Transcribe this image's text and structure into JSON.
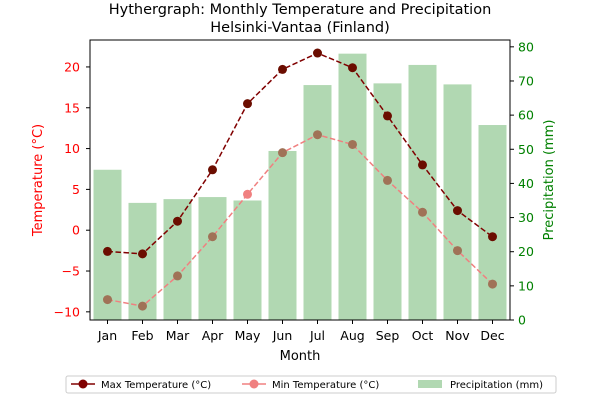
{
  "chart_data": {
    "type": "bar+line",
    "title": "Hythergraph: Monthly Temperature and Precipitation",
    "subtitle": "Helsinki-Vantaa (Finland)",
    "xlabel": "Month",
    "ylabel_left": "Temperature (°C)",
    "ylabel_right": "Precipitation (mm)",
    "categories": [
      "Jan",
      "Feb",
      "Mar",
      "Apr",
      "May",
      "Jun",
      "Jul",
      "Aug",
      "Sep",
      "Oct",
      "Nov",
      "Dec"
    ],
    "ylim_left": [
      -11,
      23.3
    ],
    "ylim_right": [
      0,
      82
    ],
    "yticks_left": [
      -10,
      -5,
      0,
      5,
      10,
      15,
      20
    ],
    "yticks_right": [
      0,
      10,
      20,
      30,
      40,
      50,
      60,
      70,
      80
    ],
    "series": [
      {
        "name": "Max Temperature (°C)",
        "kind": "line",
        "axis": "left",
        "color": "#800000",
        "linestyle": "dashed",
        "values": [
          -2.6,
          -2.9,
          1.1,
          7.4,
          15.5,
          19.7,
          21.7,
          19.9,
          14.0,
          8.0,
          2.4,
          -0.8
        ]
      },
      {
        "name": "Min Temperature (°C)",
        "kind": "line",
        "axis": "left",
        "color": "#f08080",
        "linestyle": "dashed",
        "values": [
          -8.5,
          -9.3,
          -5.6,
          -0.8,
          4.4,
          9.5,
          11.7,
          10.5,
          6.1,
          2.2,
          -2.5,
          -6.6
        ]
      },
      {
        "name": "Precipitation (mm)",
        "kind": "bar",
        "axis": "right",
        "color": "#b1d8b2",
        "values": [
          44.0,
          34.3,
          35.4,
          36.0,
          35.0,
          49.5,
          68.8,
          78.0,
          69.3,
          74.7,
          69.0,
          57.1
        ]
      }
    ],
    "left_axis_color": "#ff0000",
    "right_axis_color": "#008000",
    "legend_position": "bottom",
    "grid": false
  }
}
